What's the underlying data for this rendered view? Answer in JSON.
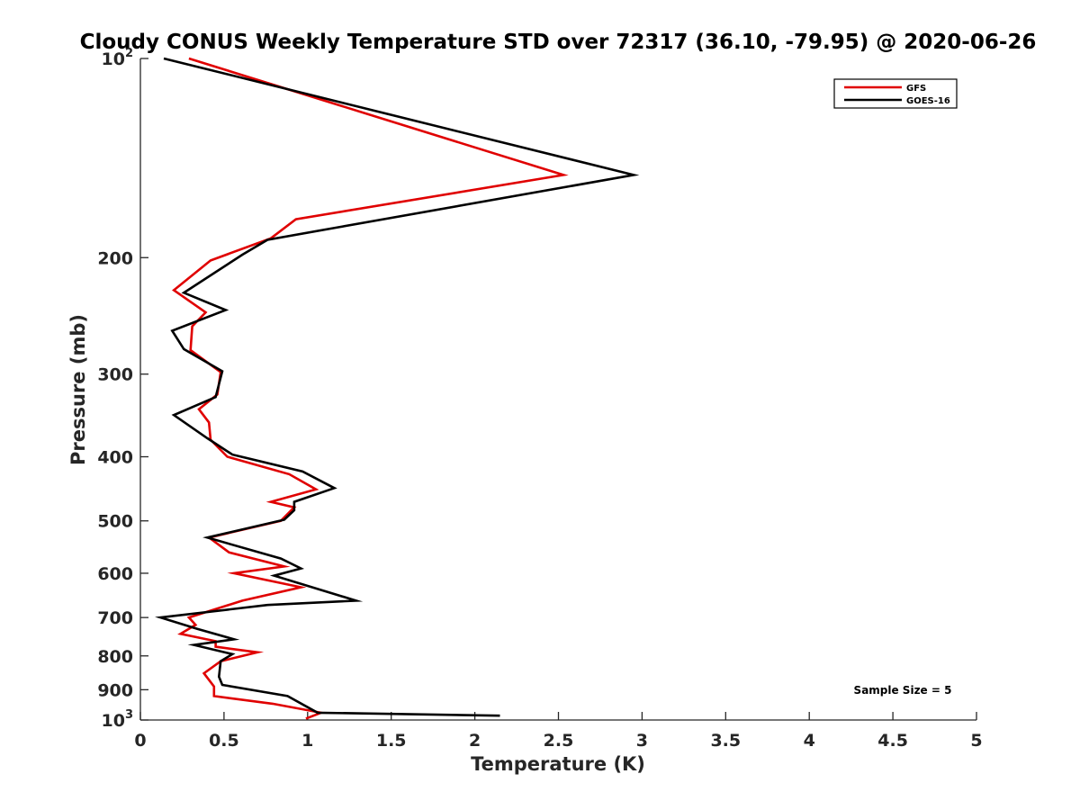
{
  "chart_data": {
    "type": "line",
    "title": "Cloudy CONUS Weekly Temperature STD over 72317 (36.10, -79.95) @ 2020-06-26",
    "xlabel": "Temperature (K)",
    "ylabel": "Pressure (mb)",
    "xlim": [
      0,
      5
    ],
    "ylim": [
      100,
      1000
    ],
    "y_scale": "log",
    "y_reversed": true,
    "grid": false,
    "legend_position": "top-right",
    "x_ticks": [
      {
        "value": 0,
        "label": "0"
      },
      {
        "value": 0.5,
        "label": "0.5"
      },
      {
        "value": 1,
        "label": "1"
      },
      {
        "value": 1.5,
        "label": "1.5"
      },
      {
        "value": 2,
        "label": "2"
      },
      {
        "value": 2.5,
        "label": "2.5"
      },
      {
        "value": 3,
        "label": "3"
      },
      {
        "value": 3.5,
        "label": "3.5"
      },
      {
        "value": 4,
        "label": "4"
      },
      {
        "value": 4.5,
        "label": "4.5"
      },
      {
        "value": 5,
        "label": "5"
      }
    ],
    "y_ticks": [
      {
        "value": 100,
        "base": "10",
        "exp": "2"
      },
      {
        "value": 200,
        "base": "200",
        "exp": ""
      },
      {
        "value": 300,
        "base": "300",
        "exp": ""
      },
      {
        "value": 400,
        "base": "400",
        "exp": ""
      },
      {
        "value": 500,
        "base": "500",
        "exp": ""
      },
      {
        "value": 600,
        "base": "600",
        "exp": ""
      },
      {
        "value": 700,
        "base": "700",
        "exp": ""
      },
      {
        "value": 800,
        "base": "800",
        "exp": ""
      },
      {
        "value": 900,
        "base": "900",
        "exp": ""
      },
      {
        "value": 1000,
        "base": "10",
        "exp": "3"
      }
    ],
    "series": [
      {
        "name": "GFS",
        "color": "#e00000",
        "points": [
          [
            0.29,
            100
          ],
          [
            2.53,
            150
          ],
          [
            0.93,
            175
          ],
          [
            0.78,
            187
          ],
          [
            0.42,
            202
          ],
          [
            0.2,
            224
          ],
          [
            0.39,
            242
          ],
          [
            0.31,
            254
          ],
          [
            0.3,
            276
          ],
          [
            0.48,
            298
          ],
          [
            0.46,
            322
          ],
          [
            0.35,
            339
          ],
          [
            0.41,
            355
          ],
          [
            0.42,
            377
          ],
          [
            0.52,
            400
          ],
          [
            0.89,
            425
          ],
          [
            1.05,
            448
          ],
          [
            0.78,
            468
          ],
          [
            0.92,
            477
          ],
          [
            0.84,
            500
          ],
          [
            0.41,
            530
          ],
          [
            0.53,
            558
          ],
          [
            0.86,
            586
          ],
          [
            0.56,
            600
          ],
          [
            0.96,
            630
          ],
          [
            0.61,
            660
          ],
          [
            0.29,
            700
          ],
          [
            0.33,
            718
          ],
          [
            0.24,
            741
          ],
          [
            0.45,
            760
          ],
          [
            0.45,
            775
          ],
          [
            0.7,
            790
          ],
          [
            0.48,
            815
          ],
          [
            0.38,
            850
          ],
          [
            0.44,
            890
          ],
          [
            0.44,
            920
          ],
          [
            0.79,
            945
          ],
          [
            1.08,
            975
          ],
          [
            0.99,
            995
          ]
        ]
      },
      {
        "name": "GOES-16",
        "color": "#000000",
        "points": [
          [
            0.14,
            100
          ],
          [
            2.95,
            150
          ],
          [
            1.18,
            180
          ],
          [
            0.76,
            188
          ],
          [
            0.61,
            198
          ],
          [
            0.26,
            226
          ],
          [
            0.51,
            240
          ],
          [
            0.19,
            258
          ],
          [
            0.26,
            275
          ],
          [
            0.49,
            297
          ],
          [
            0.45,
            325
          ],
          [
            0.2,
            346
          ],
          [
            0.4,
            375
          ],
          [
            0.55,
            397
          ],
          [
            0.97,
            421
          ],
          [
            1.16,
            446
          ],
          [
            0.92,
            468
          ],
          [
            0.92,
            482
          ],
          [
            0.86,
            498
          ],
          [
            0.4,
            530
          ],
          [
            0.84,
            570
          ],
          [
            0.96,
            590
          ],
          [
            0.8,
            605
          ],
          [
            1.29,
            660
          ],
          [
            0.76,
            670
          ],
          [
            0.12,
            700
          ],
          [
            0.34,
            728
          ],
          [
            0.56,
            755
          ],
          [
            0.32,
            770
          ],
          [
            0.55,
            795
          ],
          [
            0.48,
            815
          ],
          [
            0.47,
            860
          ],
          [
            0.49,
            885
          ],
          [
            0.88,
            920
          ],
          [
            1.06,
            975
          ],
          [
            2.15,
            985
          ]
        ]
      }
    ],
    "legend": [
      {
        "label": "GFS",
        "color": "#e00000"
      },
      {
        "label": "GOES-16",
        "color": "#000000"
      }
    ],
    "annotation": "Sample Size = 5"
  }
}
